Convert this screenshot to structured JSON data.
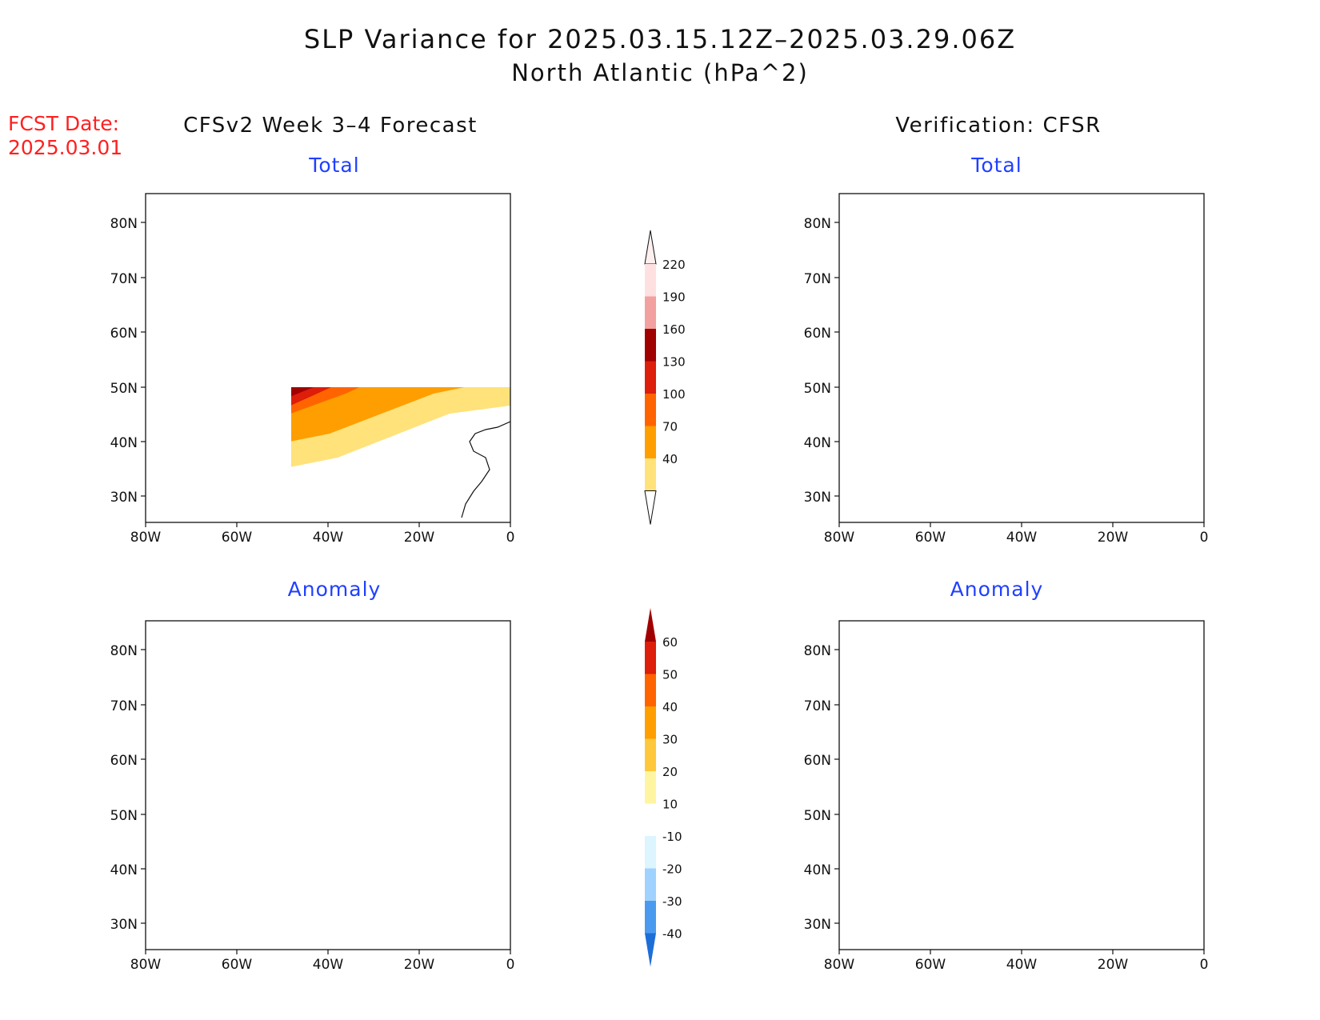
{
  "title": {
    "line1": "SLP Variance for 2025.03.15.12Z–2025.03.29.06Z",
    "line2": "North Atlantic (hPa^2)"
  },
  "fcst": {
    "label": "FCST Date:",
    "date": "2025.03.01"
  },
  "columns": {
    "left": "CFSv2 Week 3–4 Forecast",
    "right": "Verification: CFSR"
  },
  "panels": {
    "tl": "Total",
    "tr": "Total",
    "bl": "Anomaly",
    "br": "Anomaly"
  },
  "axes": {
    "lat": [
      "80N",
      "70N",
      "60N",
      "50N",
      "40N",
      "30N"
    ],
    "lon": [
      "80W",
      "60W",
      "40W",
      "20W",
      "0"
    ]
  },
  "colorbar_total": {
    "levels": [
      "220",
      "190",
      "160",
      "130",
      "100",
      "70",
      "40"
    ],
    "colors": [
      "#ffe0e0",
      "#f2a0a0",
      "#a00000",
      "#dc1e0a",
      "#ff6400",
      "#ff9e00",
      "#ffe27a"
    ]
  },
  "colorbar_anom": {
    "levels": [
      "60",
      "50",
      "40",
      "30",
      "20",
      "10",
      "-10",
      "-20",
      "-30",
      "-40"
    ],
    "colors": [
      "#a00000",
      "#dc1e0a",
      "#ff6400",
      "#ff9e00",
      "#ffc83c",
      "#fff5a0",
      "#ffffff",
      "#dcf5ff",
      "#a0d2ff",
      "#4a9bf0",
      "#1e6ed8"
    ]
  },
  "colors": {
    "title": "#111111",
    "fcst": "#ff2020",
    "panel_title": "#2040ff"
  }
}
